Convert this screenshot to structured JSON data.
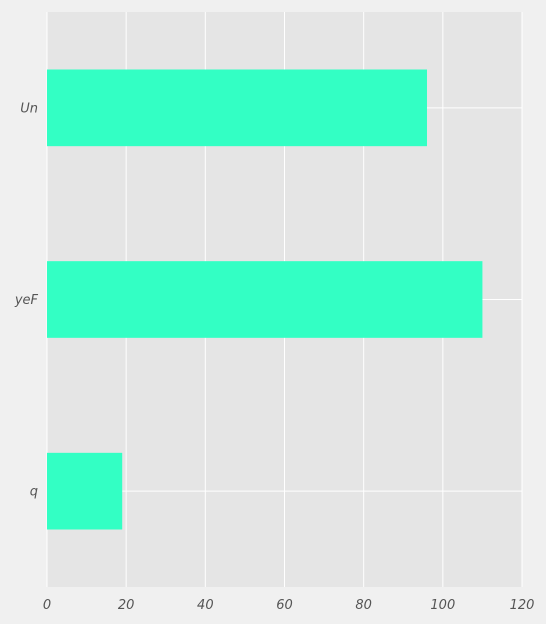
{
  "chart_data": {
    "type": "bar",
    "orientation": "horizontal",
    "categories": [
      "Un",
      "yeF",
      "q"
    ],
    "values": [
      96,
      110,
      19
    ],
    "xlim": [
      0,
      120
    ],
    "xticks": [
      0,
      20,
      40,
      60,
      80,
      100,
      120
    ],
    "title": "",
    "xlabel": "",
    "ylabel": "",
    "grid": true,
    "legend": "none",
    "colors": {
      "bar": "#33ffc4",
      "plot_background": "#e5e5e5",
      "figure_background": "#f0f0f0",
      "grid": "#ffffff",
      "tick_text": "#555555"
    }
  }
}
